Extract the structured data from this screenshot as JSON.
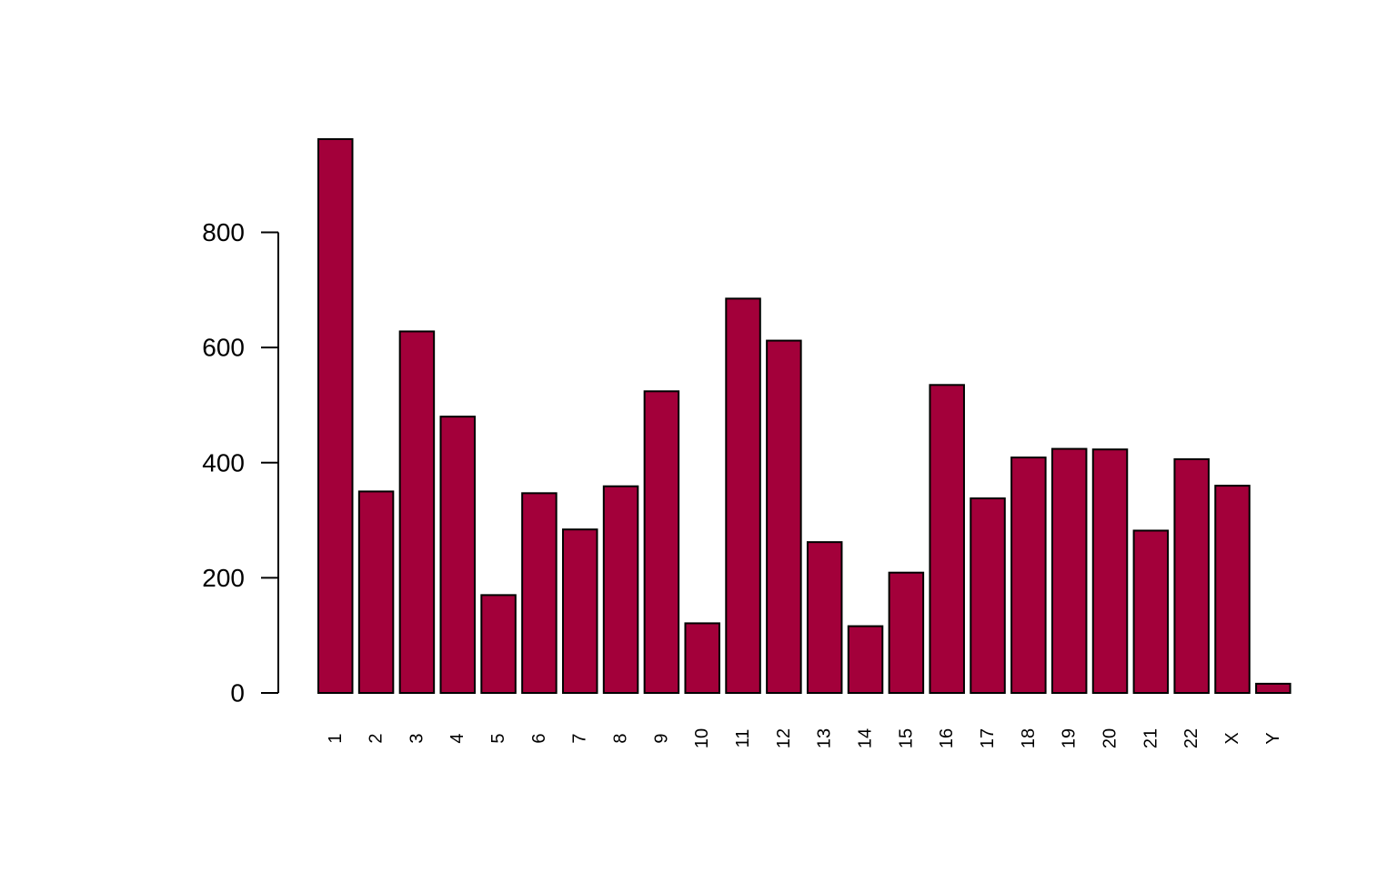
{
  "chart_data": {
    "type": "bar",
    "categories": [
      "1",
      "2",
      "3",
      "4",
      "5",
      "6",
      "7",
      "8",
      "9",
      "10",
      "11",
      "12",
      "13",
      "14",
      "15",
      "16",
      "17",
      "18",
      "19",
      "20",
      "21",
      "22",
      "X",
      "Y"
    ],
    "values": [
      962,
      350,
      628,
      480,
      170,
      347,
      284,
      359,
      524,
      121,
      685,
      612,
      262,
      116,
      209,
      535,
      338,
      409,
      424,
      423,
      282,
      406,
      360,
      16
    ],
    "ylim": [
      0,
      962
    ],
    "yticks": [
      0,
      200,
      400,
      600,
      800
    ],
    "ytick_labels": [
      "0",
      "200",
      "400",
      "600",
      "800"
    ],
    "title": "",
    "xlabel": "",
    "ylabel": "",
    "bar_color": "#a3003a",
    "edge_color": "#000000",
    "grid": false,
    "x_tick_labels_rotated": true
  }
}
